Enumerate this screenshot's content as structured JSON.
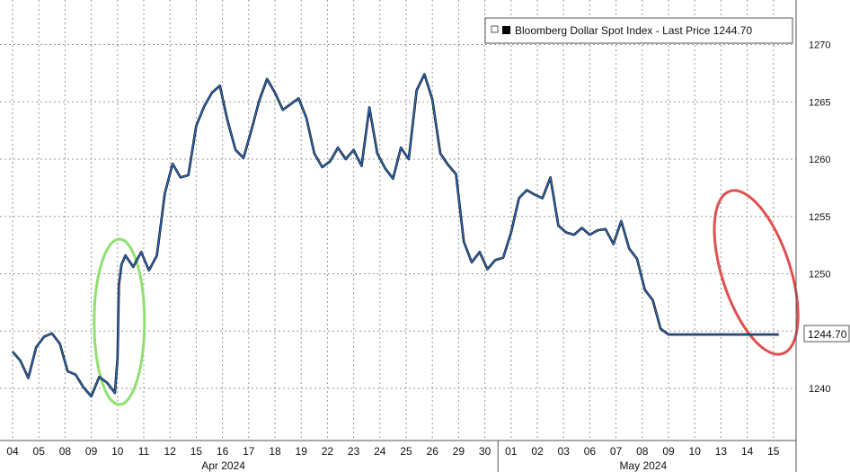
{
  "chart_data": {
    "type": "line",
    "title": "",
    "xlabel": "",
    "ylabel": "",
    "legend": {
      "label": "Bloomberg Dollar Spot Index - Last Price 1244.70",
      "placement": "top-right"
    },
    "ylim": [
      1235,
      1272
    ],
    "y_ticks": [
      1240,
      1245,
      1250,
      1255,
      1260,
      1265,
      1270
    ],
    "y_tick_labels": [
      "1240",
      "",
      "1250",
      "1255",
      "1260",
      "1265",
      "1270"
    ],
    "last_value": 1244.7,
    "last_value_label": "1244.70",
    "categories": [
      "04",
      "05",
      "08",
      "09",
      "10",
      "11",
      "12",
      "15",
      "16",
      "17",
      "18",
      "19",
      "22",
      "23",
      "24",
      "25",
      "26",
      "29",
      "30",
      "01",
      "02",
      "03",
      "06",
      "07",
      "08",
      "09",
      "10",
      "13",
      "14",
      "15"
    ],
    "month_labels": [
      {
        "label": "Apr 2024",
        "anchor_index": 8
      },
      {
        "label": "May 2024",
        "anchor_index": 24
      }
    ],
    "grid": true,
    "annotations": [
      {
        "shape": "ellipse",
        "color": "#90e070",
        "around_index": 4
      },
      {
        "shape": "ellipse",
        "color": "#e05050",
        "around_index": 28
      }
    ],
    "series": [
      {
        "color": "#2f6fc0",
        "x": [
          0,
          0.3,
          0.6,
          0.9,
          1.2,
          1.5,
          1.8,
          2.1,
          2.4,
          2.7,
          3.0,
          3.3,
          3.6,
          3.9,
          4.0,
          4.05,
          4.15,
          4.3,
          4.6,
          4.9,
          5.2,
          5.5,
          5.8,
          6.1,
          6.4,
          6.7,
          7.0,
          7.3,
          7.6,
          7.9,
          8.2,
          8.5,
          8.8,
          9.1,
          9.4,
          9.7,
          10.0,
          10.3,
          10.6,
          10.9,
          11.2,
          11.5,
          11.8,
          12.1,
          12.4,
          12.7,
          13.0,
          13.3,
          13.6,
          13.9,
          14.2,
          14.5,
          14.8,
          15.1,
          15.4,
          15.7,
          16.0,
          16.3,
          16.6,
          16.9,
          17.2,
          17.5,
          17.8,
          18.1,
          18.4,
          18.7,
          19.0,
          19.3,
          19.6,
          19.9,
          20.2,
          20.5,
          20.8,
          21.1,
          21.4,
          21.7,
          22.0,
          22.3,
          22.6,
          22.9,
          23.2,
          23.5,
          23.8,
          24.1,
          24.4,
          24.7,
          25.0,
          25.3,
          25.6,
          25.9,
          26.2,
          26.5,
          26.8,
          27.1,
          27.4,
          27.7,
          28.0,
          28.3,
          28.6,
          28.9,
          29.2
        ],
        "values": [
          1243.2,
          1242.4,
          1240.9,
          1243.6,
          1244.5,
          1244.8,
          1243.9,
          1241.5,
          1241.2,
          1240.1,
          1239.3,
          1241.0,
          1240.5,
          1239.6,
          1242.6,
          1249.0,
          1250.8,
          1251.6,
          1250.6,
          1251.9,
          1250.3,
          1251.6,
          1257.0,
          1259.6,
          1258.4,
          1258.6,
          1262.9,
          1264.6,
          1265.8,
          1266.4,
          1263.3,
          1260.8,
          1260.1,
          1262.5,
          1265.1,
          1267.0,
          1265.8,
          1264.3,
          1264.8,
          1265.3,
          1263.6,
          1260.5,
          1259.3,
          1259.8,
          1261.0,
          1260.0,
          1260.8,
          1259.4,
          1264.5,
          1260.5,
          1259.2,
          1258.3,
          1261.0,
          1260.0,
          1266.0,
          1267.4,
          1265.2,
          1260.5,
          1259.5,
          1258.7,
          1252.8,
          1251.0,
          1251.9,
          1250.4,
          1251.2,
          1251.4,
          1253.6,
          1256.6,
          1257.3,
          1256.9,
          1256.6,
          1258.4,
          1254.2,
          1253.6,
          1253.4,
          1254.0,
          1253.4,
          1253.8,
          1253.9,
          1252.6,
          1254.6,
          1252.2,
          1251.3,
          1248.6,
          1247.7,
          1245.2,
          1244.7,
          1244.7,
          1244.7,
          1244.7,
          1244.7,
          1244.7,
          1244.7,
          1244.7,
          1244.7,
          1244.7,
          1244.7,
          1244.7,
          1244.7,
          1244.7,
          1244.7
        ]
      }
    ]
  }
}
